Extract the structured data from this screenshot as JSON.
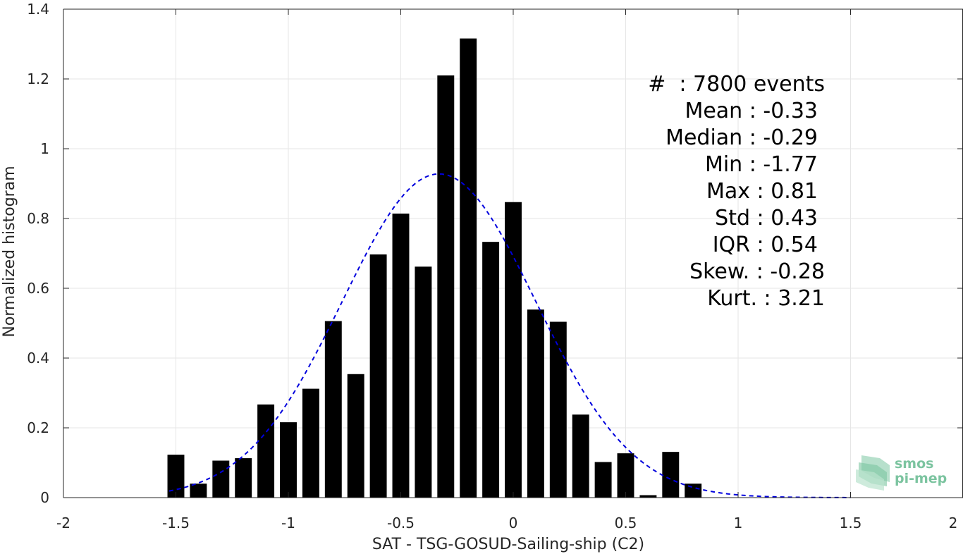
{
  "chart_data": {
    "type": "bar",
    "xlabel": "SAT - TSG-GOSUD-Sailing-ship (C2)",
    "ylabel": "Normalized histogram",
    "xlim": [
      -2,
      2
    ],
    "ylim": [
      0,
      1.4
    ],
    "grid": true,
    "x_ticks": [
      -2,
      -1.5,
      -1,
      -0.5,
      0,
      0.5,
      1,
      1.5,
      2
    ],
    "x_tick_labels": [
      "-2",
      "-1.5",
      "-1",
      "-0.5",
      "0",
      "0.5",
      "1",
      "1.5",
      "2"
    ],
    "y_ticks": [
      0,
      0.2,
      0.4,
      0.6,
      0.8,
      1,
      1.2,
      1.4
    ],
    "y_tick_labels": [
      "0",
      "0.2",
      "0.4",
      "0.6",
      "0.8",
      "1",
      "1.2",
      "1.4"
    ],
    "bar_width": 0.075,
    "bars": [
      {
        "x": -1.5,
        "y": 0.123
      },
      {
        "x": -1.4,
        "y": 0.04
      },
      {
        "x": -1.3,
        "y": 0.106
      },
      {
        "x": -1.2,
        "y": 0.113
      },
      {
        "x": -1.1,
        "y": 0.267
      },
      {
        "x": -1.0,
        "y": 0.216
      },
      {
        "x": -0.9,
        "y": 0.312
      },
      {
        "x": -0.8,
        "y": 0.506
      },
      {
        "x": -0.7,
        "y": 0.354
      },
      {
        "x": -0.6,
        "y": 0.697
      },
      {
        "x": -0.5,
        "y": 0.814
      },
      {
        "x": -0.4,
        "y": 0.662
      },
      {
        "x": -0.3,
        "y": 1.21
      },
      {
        "x": -0.2,
        "y": 1.316
      },
      {
        "x": -0.1,
        "y": 0.733
      },
      {
        "x": 0.0,
        "y": 0.847
      },
      {
        "x": 0.1,
        "y": 0.539
      },
      {
        "x": 0.2,
        "y": 0.504
      },
      {
        "x": 0.3,
        "y": 0.238
      },
      {
        "x": 0.4,
        "y": 0.102
      },
      {
        "x": 0.5,
        "y": 0.127
      },
      {
        "x": 0.6,
        "y": 0.007
      },
      {
        "x": 0.7,
        "y": 0.131
      },
      {
        "x": 0.8,
        "y": 0.04
      }
    ],
    "fit_curve": {
      "style": "dashed",
      "color": "#0000dd",
      "mean": -0.33,
      "std": 0.43,
      "x_range": [
        -1.53,
        1.5
      ]
    },
    "annotation_lines": [
      "#  : 7800 events",
      "Mean : -0.33",
      "Median : -0.29",
      "Min : -1.77",
      "Max : 0.81",
      "Std : 0.43",
      "IQR : 0.54",
      "Skew. : -0.28",
      "Kurt. : 3.21"
    ]
  },
  "logo": {
    "line1": "smos",
    "line2": "pi-mep",
    "color": "#7cc4a0"
  },
  "colors": {
    "bar": "#000000",
    "grid": "#e6e6e6",
    "axis": "#262626",
    "fit": "#0000dd"
  }
}
